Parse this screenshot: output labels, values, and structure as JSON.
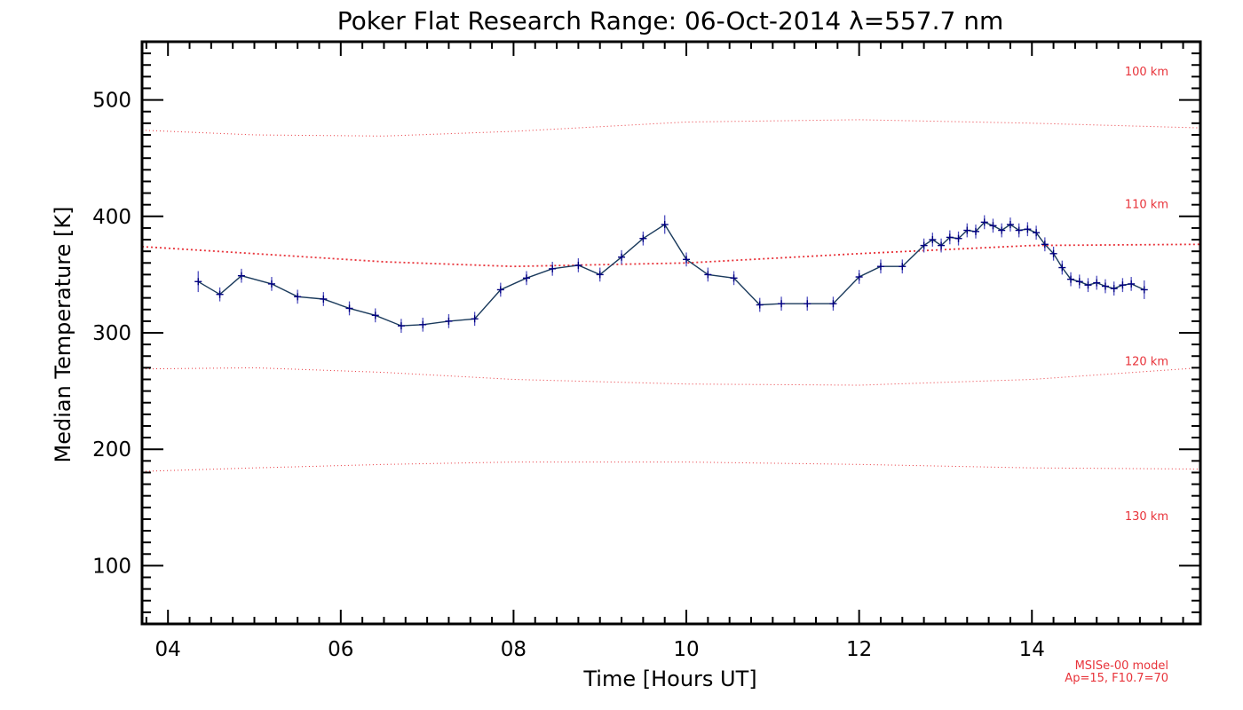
{
  "chart_data": {
    "type": "line",
    "title": "Poker Flat Research Range: 06-Oct-2014 λ=557.7 nm",
    "xlabel": "Time [Hours UT]",
    "ylabel": "Median Temperature [K]",
    "xlim": [
      3.7,
      15.95
    ],
    "ylim": [
      50,
      550
    ],
    "x_ticks": [
      4,
      6,
      8,
      10,
      12,
      14
    ],
    "x_tick_labels": [
      "04",
      "06",
      "08",
      "10",
      "12",
      "14"
    ],
    "y_ticks": [
      100,
      200,
      300,
      400,
      500
    ],
    "y_tick_labels": [
      "100",
      "200",
      "300",
      "400",
      "500"
    ],
    "grid": false,
    "series": [
      {
        "color": "#1a3a5c",
        "marker_color": "#000080",
        "errorbar_color": "#5050c0",
        "x": [
          4.35,
          4.6,
          4.85,
          5.2,
          5.5,
          5.8,
          6.1,
          6.4,
          6.7,
          6.95,
          7.25,
          7.55,
          7.85,
          8.15,
          8.45,
          8.75,
          9.0,
          9.25,
          9.5,
          9.75,
          10.0,
          10.25,
          10.55,
          10.85,
          11.1,
          11.4,
          11.7,
          12.0,
          12.25,
          12.5,
          12.75,
          12.85,
          12.95,
          13.05,
          13.15,
          13.25,
          13.35,
          13.45,
          13.55,
          13.65,
          13.75,
          13.85,
          13.95,
          14.05,
          14.15,
          14.25,
          14.35,
          14.45,
          14.55,
          14.65,
          14.75,
          14.85,
          14.95,
          15.05,
          15.15,
          15.3
        ],
        "y": [
          344,
          333,
          349,
          342,
          331,
          329,
          321,
          315,
          306,
          307,
          310,
          312,
          337,
          347,
          355,
          358,
          350,
          365,
          381,
          393,
          363,
          350,
          347,
          324,
          325,
          325,
          325,
          348,
          357,
          357,
          375,
          380,
          375,
          382,
          381,
          388,
          387,
          395,
          392,
          388,
          393,
          388,
          389,
          386,
          376,
          368,
          356,
          346,
          344,
          341,
          343,
          340,
          338,
          341,
          342,
          337
        ],
        "err": [
          9,
          6,
          6,
          6,
          6,
          6,
          6,
          6,
          6,
          6,
          6,
          6,
          6,
          6,
          6,
          6,
          6,
          6,
          6,
          8,
          6,
          6,
          6,
          6,
          6,
          6,
          6,
          6,
          6,
          6,
          6,
          6,
          6,
          6,
          6,
          6,
          6,
          6,
          6,
          6,
          6,
          6,
          6,
          6,
          6,
          6,
          6,
          6,
          6,
          6,
          6,
          6,
          6,
          6,
          6,
          8
        ]
      }
    ],
    "model_curves": [
      {
        "label": "130 km",
        "label_y": 143,
        "color": "#e8333a",
        "x": [
          3.7,
          5.0,
          6.5,
          8.0,
          10.0,
          12.0,
          14.0,
          15.95
        ],
        "y": [
          474,
          470,
          469,
          473,
          481,
          483,
          480,
          476
        ]
      },
      {
        "label": "120 km",
        "label_y": 276,
        "color": "#e8333a",
        "x": [
          3.7,
          5.0,
          6.5,
          8.0,
          10.0,
          12.0,
          14.0,
          15.95
        ],
        "y": [
          374,
          368,
          361,
          357,
          360,
          368,
          375,
          376
        ]
      },
      {
        "label": "110 km",
        "label_y": 411,
        "color": "#e8333a",
        "x": [
          3.7,
          5.0,
          6.5,
          8.0,
          10.0,
          12.0,
          14.0,
          15.95
        ],
        "y": [
          269,
          270,
          266,
          260,
          256,
          255,
          260,
          270
        ]
      },
      {
        "label": "100 km",
        "label_y": 525,
        "color": "#e8333a",
        "x": [
          3.7,
          5.0,
          6.5,
          8.0,
          10.0,
          12.0,
          14.0,
          15.95
        ],
        "y": [
          181,
          184,
          187,
          189,
          189,
          187,
          184,
          183
        ]
      }
    ],
    "model_note": [
      "MSISe-00 model",
      "Ap=15, F10.7=70"
    ]
  }
}
